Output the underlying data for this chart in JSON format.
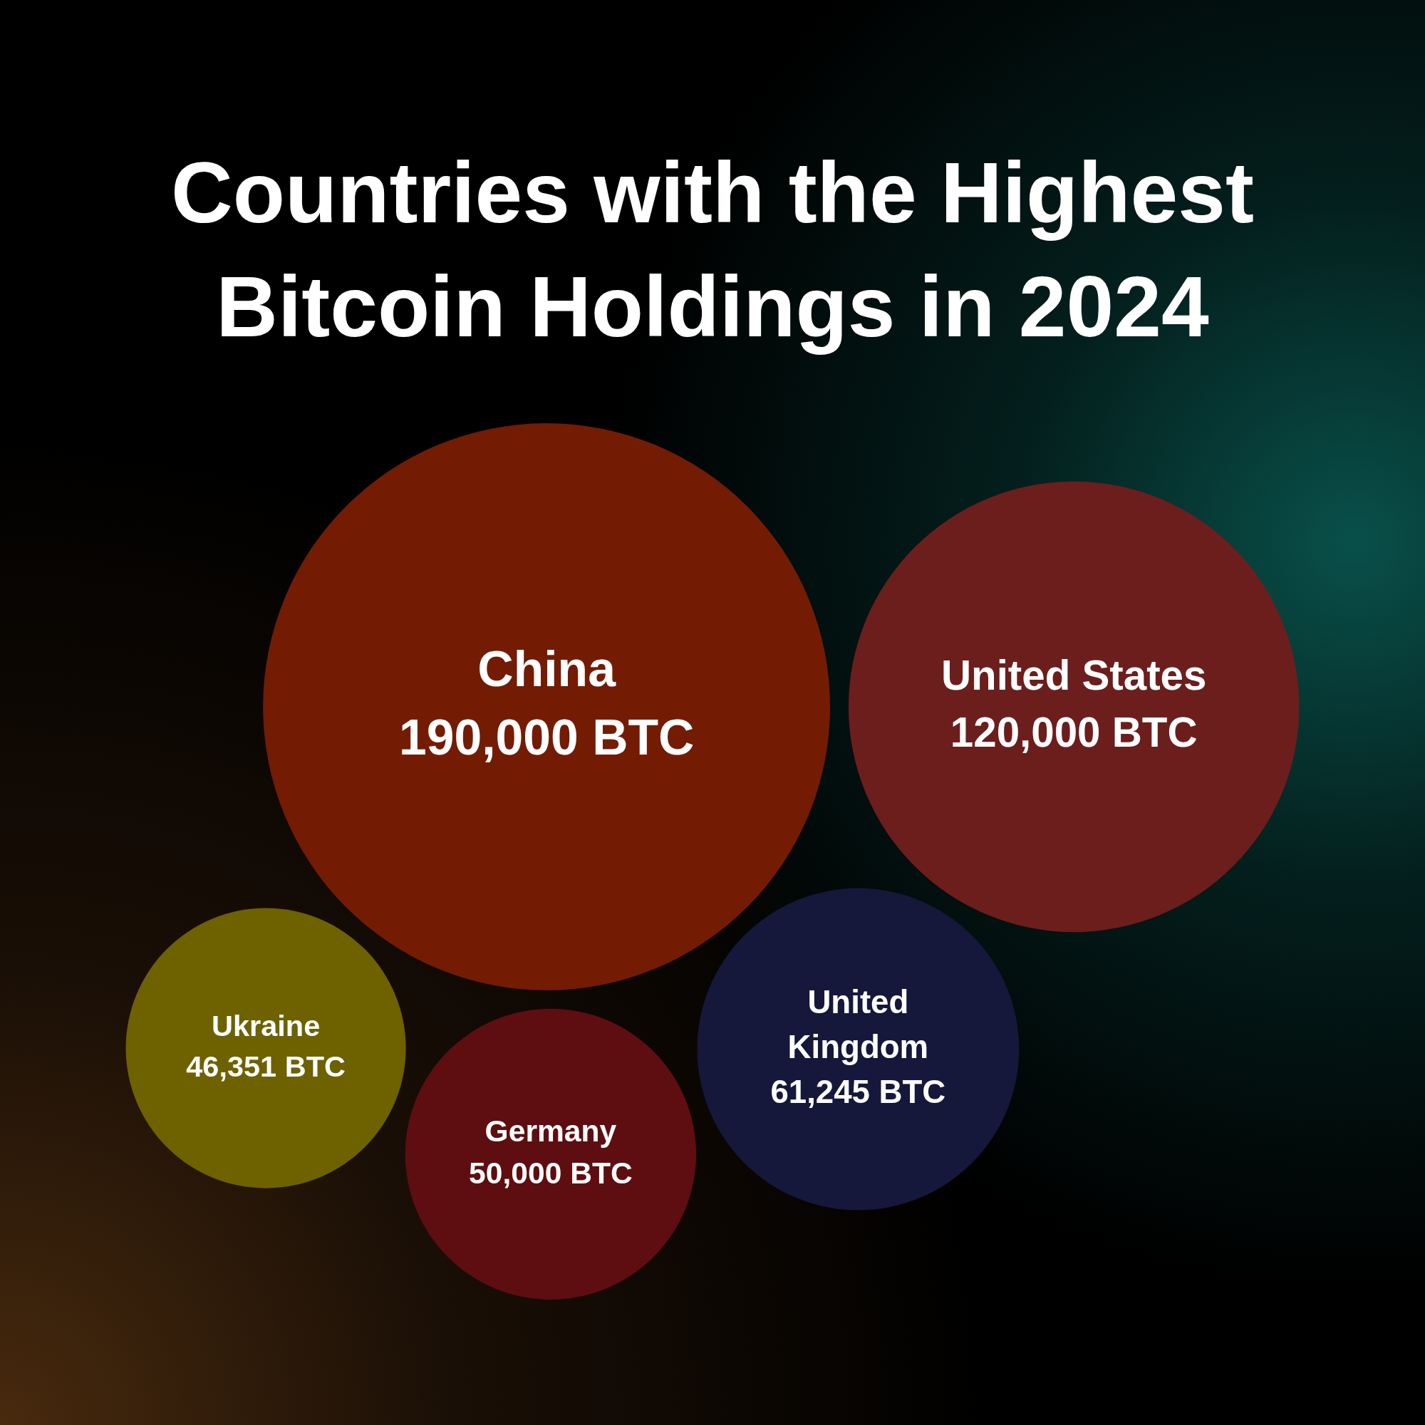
{
  "chart_data": {
    "type": "other",
    "title": "Countries with the Highest Bitcoin Holdings in 2024",
    "categories": [
      "China",
      "United States",
      "United Kingdom",
      "Germany",
      "Ukraine"
    ],
    "values": [
      190000,
      120000,
      61245,
      50000,
      46351
    ],
    "value_labels": [
      "190,000 BTC",
      "120,000 BTC",
      "61,245 BTC",
      "50,000 BTC",
      "46,351 BTC"
    ],
    "colors": [
      "#731c03",
      "#6c1e1c",
      "#15183a",
      "#5e0e10",
      "#6e6100"
    ]
  }
}
